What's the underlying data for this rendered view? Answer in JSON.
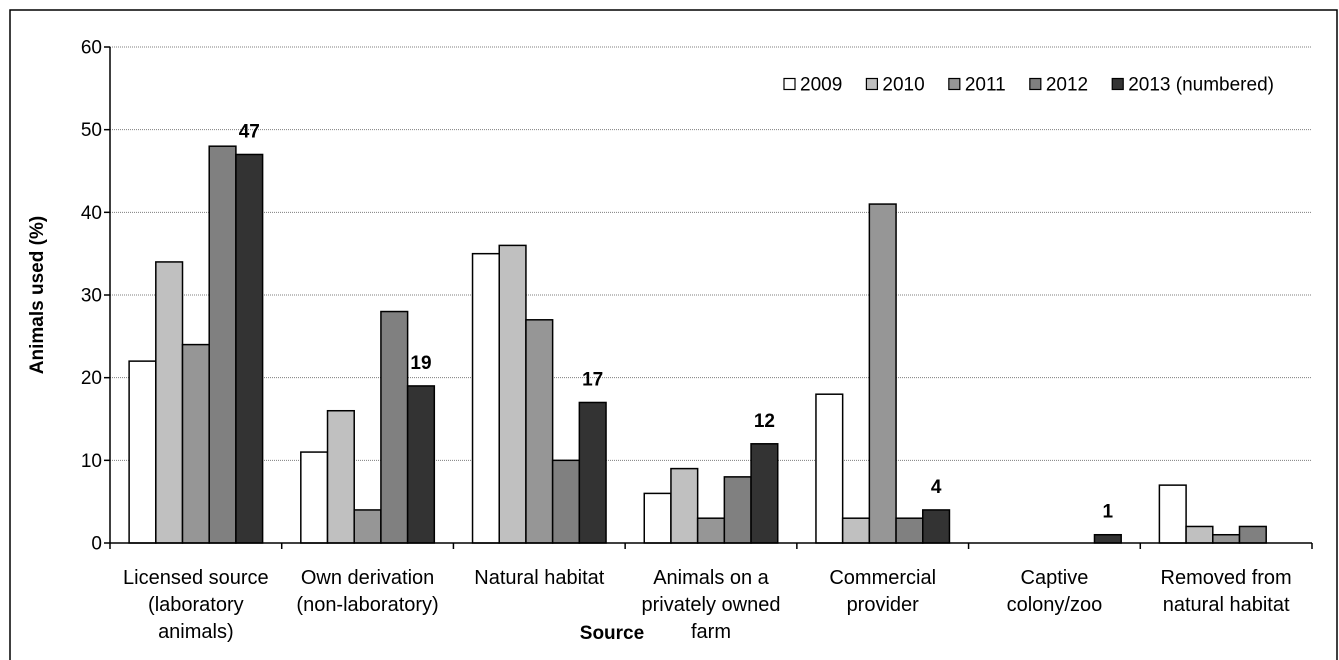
{
  "chart_data": {
    "type": "bar",
    "categories": [
      "Licensed source\n(laboratory\nanimals)",
      "Own derivation\n(non-laboratory)",
      "Natural habitat",
      "Animals on a\nprivately owned\nfarm",
      "Commercial\nprovider",
      "Captive\ncolony/zoo",
      "Removed from\nnatural habitat"
    ],
    "series": [
      {
        "name": "2009",
        "color": "#ffffff",
        "values": [
          22,
          11,
          35,
          6,
          18,
          null,
          7
        ]
      },
      {
        "name": "2010",
        "color": "#c0c0c0",
        "values": [
          34,
          16,
          36,
          9,
          3,
          null,
          2
        ]
      },
      {
        "name": "2011",
        "color": "#969696",
        "values": [
          24,
          4,
          27,
          3,
          41,
          null,
          1
        ]
      },
      {
        "name": "2012",
        "color": "#808080",
        "values": [
          48,
          28,
          10,
          8,
          3,
          null,
          2
        ]
      },
      {
        "name": "2013 (numbered)",
        "color": "#333333",
        "data_labels": true,
        "values": [
          47,
          19,
          17,
          12,
          4,
          1,
          null
        ]
      }
    ],
    "xlabel": "Source",
    "ylabel": "Animals used (%)",
    "ylim": [
      0,
      60
    ],
    "yticks": [
      0,
      10,
      20,
      30,
      40,
      50,
      60
    ],
    "grid": true,
    "legend": "top-right"
  }
}
